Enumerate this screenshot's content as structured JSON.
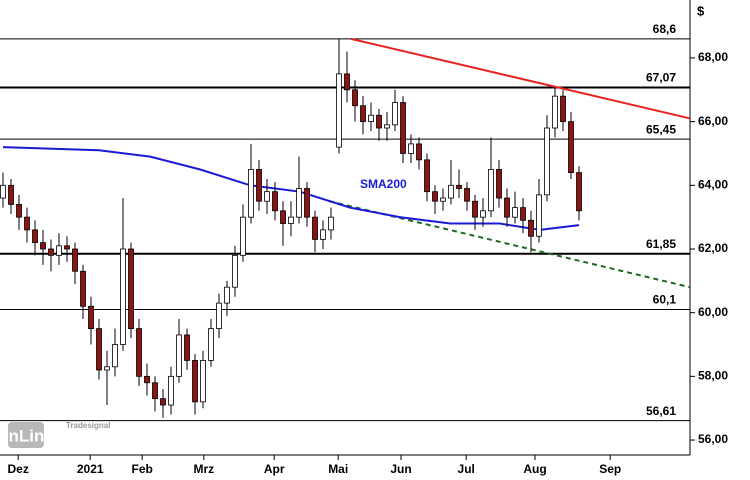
{
  "chart_data": {
    "type": "candlestick",
    "currency": "$",
    "xlim": [
      -0.375,
      85.875
    ],
    "xticks": [
      {
        "value": 1.9,
        "label": "Dez"
      },
      {
        "value": 10.9,
        "label": "2021"
      },
      {
        "value": 17.4,
        "label": "Feb"
      },
      {
        "value": 25.1,
        "label": "Mrz"
      },
      {
        "value": 33.9,
        "label": "Apr"
      },
      {
        "value": 41.9,
        "label": "Mai"
      },
      {
        "value": 49.75,
        "label": "Jun"
      },
      {
        "value": 57.9,
        "label": "Jul"
      },
      {
        "value": 66.5,
        "label": "Aug"
      },
      {
        "value": 75.9,
        "label": "Sep"
      }
    ],
    "ylim": [
      55.53,
      69.82
    ],
    "yticks": [
      {
        "value": 56,
        "label": "56,00"
      },
      {
        "value": 58,
        "label": "58,00"
      },
      {
        "value": 60,
        "label": "60,00"
      },
      {
        "value": 62,
        "label": "62,00"
      },
      {
        "value": 64,
        "label": "64,00"
      },
      {
        "value": 66,
        "label": "66,00"
      },
      {
        "value": 68,
        "label": "68,00"
      }
    ],
    "color_up": "#ffffff",
    "color_down": "#8b1414",
    "open": [
      63.6,
      64.0,
      63.4,
      63.0,
      62.6,
      62.2,
      62.0,
      61.8,
      62.1,
      62.0,
      61.3,
      60.2,
      59.5,
      58.2,
      58.3,
      59.0,
      62.0,
      59.5,
      58.0,
      57.8,
      57.3,
      57.1,
      58.0,
      59.3,
      58.5,
      57.2,
      58.5,
      59.5,
      60.3,
      60.8,
      61.8,
      63.0,
      64.5,
      63.5,
      63.8,
      63.2,
      62.8,
      63.0,
      63.9,
      63.0,
      62.3,
      62.6,
      65.2,
      67.5,
      67.0,
      66.5,
      66.0,
      66.2,
      65.8,
      65.9,
      66.6,
      65.0,
      65.3,
      64.8,
      63.8,
      63.5,
      63.6,
      64.0,
      63.9,
      63.5,
      63.0,
      63.2,
      64.5,
      63.6,
      63.0,
      63.3,
      62.9,
      62.4,
      63.7,
      65.8,
      66.8,
      66.0,
      64.4
    ],
    "high": [
      64.4,
      64.2,
      63.7,
      63.3,
      62.9,
      62.6,
      62.3,
      62.5,
      62.4,
      62.2,
      61.5,
      60.5,
      59.8,
      58.8,
      59.5,
      63.6,
      62.2,
      59.8,
      58.4,
      58.0,
      57.6,
      58.3,
      59.8,
      59.5,
      58.7,
      58.8,
      59.8,
      60.6,
      61.0,
      62.1,
      63.4,
      65.3,
      64.8,
      64.2,
      64.1,
      63.5,
      63.5,
      64.9,
      64.1,
      63.2,
      62.9,
      63.3,
      68.6,
      68.2,
      67.3,
      66.8,
      66.6,
      66.4,
      66.3,
      67.0,
      66.8,
      65.6,
      65.5,
      65.0,
      64.0,
      63.9,
      64.8,
      64.5,
      64.1,
      63.7,
      63.6,
      65.5,
      64.8,
      63.9,
      63.8,
      63.6,
      63.2,
      64.2,
      66.2,
      67.07,
      67.0,
      66.3,
      64.6
    ],
    "low": [
      63.3,
      63.1,
      62.6,
      62.2,
      61.8,
      61.5,
      61.3,
      61.5,
      61.6,
      60.9,
      59.8,
      59.0,
      57.9,
      57.1,
      58.0,
      58.8,
      59.2,
      57.7,
      57.4,
      56.9,
      56.7,
      56.8,
      57.8,
      58.2,
      56.8,
      57.0,
      58.3,
      59.2,
      59.9,
      60.5,
      61.6,
      62.8,
      63.2,
      63.1,
      62.9,
      62.1,
      62.4,
      62.8,
      62.7,
      61.9,
      62.0,
      62.3,
      65.0,
      66.6,
      66.0,
      65.6,
      65.7,
      65.4,
      65.4,
      65.7,
      64.7,
      64.7,
      64.5,
      63.5,
      63.1,
      63.2,
      63.4,
      63.6,
      63.2,
      62.6,
      62.7,
      63.0,
      63.3,
      62.7,
      62.8,
      62.5,
      61.9,
      62.2,
      63.5,
      65.5,
      65.7,
      64.2,
      62.9
    ],
    "close": [
      64.0,
      63.4,
      63.0,
      62.6,
      62.2,
      62.0,
      61.8,
      62.1,
      62.0,
      61.3,
      60.2,
      59.5,
      58.2,
      58.3,
      59.0,
      62.0,
      59.5,
      58.0,
      57.8,
      57.3,
      57.1,
      58.0,
      59.3,
      58.5,
      57.2,
      58.5,
      59.5,
      60.3,
      60.8,
      61.8,
      63.0,
      64.5,
      63.5,
      63.8,
      63.2,
      62.8,
      63.0,
      63.9,
      63.0,
      62.3,
      62.6,
      63.0,
      67.5,
      67.0,
      66.5,
      66.0,
      66.2,
      65.8,
      65.9,
      66.6,
      65.0,
      65.3,
      64.8,
      63.8,
      63.5,
      63.6,
      64.0,
      63.9,
      63.5,
      63.0,
      63.2,
      64.5,
      63.6,
      63.0,
      63.3,
      62.9,
      62.4,
      63.7,
      65.8,
      66.8,
      66.0,
      64.4,
      63.2
    ],
    "sma": {
      "name": "SMA200",
      "color": "#1a1ad6",
      "x": [
        0,
        12,
        18.4,
        24.6,
        30.9,
        37.1,
        43.4,
        49.6,
        55.9,
        62.1,
        67.1,
        72
      ],
      "values": [
        65.2,
        65.1,
        64.9,
        64.5,
        64.0,
        63.8,
        63.3,
        63.0,
        62.8,
        62.8,
        62.6,
        62.75
      ]
    },
    "trendlines": [
      {
        "color": "#e8231f",
        "dashed": false,
        "x": [
          43.5,
          85.875
        ],
        "values": [
          68.6,
          66.1
        ]
      },
      {
        "color": "#1f6b1f",
        "dashed": true,
        "x": [
          40.8,
          85.875
        ],
        "values": [
          63.5,
          60.8
        ]
      }
    ],
    "levels": [
      {
        "value": 68.6,
        "label": "68,6",
        "width": 1
      },
      {
        "value": 67.07,
        "label": "67,07",
        "width": 2
      },
      {
        "value": 65.45,
        "label": "65,45",
        "width": 1
      },
      {
        "value": 61.85,
        "label": "61,85",
        "width": 2
      },
      {
        "value": 60.1,
        "label": "60,1",
        "width": 1
      },
      {
        "value": 56.61,
        "label": "56,61",
        "width": 1
      }
    ],
    "watermark": {
      "brand": "Tradesignal",
      "product": "onLine"
    }
  }
}
